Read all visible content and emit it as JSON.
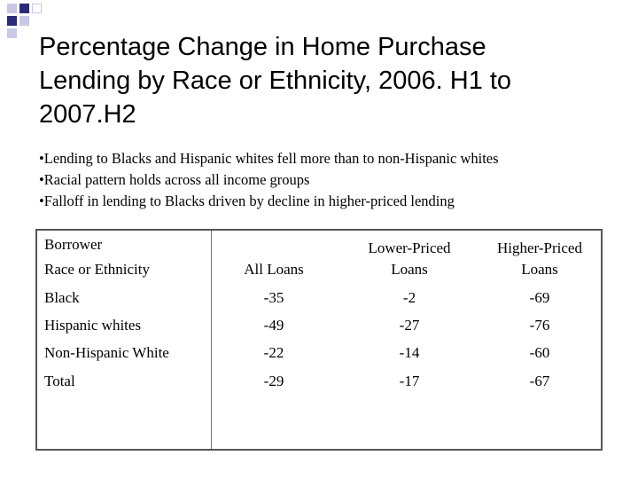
{
  "slide": {
    "title_lines": [
      "Percentage Change in Home Purchase",
      "Lending by Race or Ethnicity, 2006. H1 to",
      "2007.H2"
    ],
    "bullets": [
      "•Lending to Blacks and Hispanic whites fell more than to non-Hispanic whites",
      "•Racial pattern holds across all income groups",
      "•Falloff in lending to Blacks driven by decline in higher-priced lending"
    ]
  },
  "table": {
    "header": {
      "col1_line1": "Borrower",
      "col1_line2": "Race or Ethnicity",
      "col2": "All Loans",
      "col3_line1": "Lower-Priced",
      "col3_line2": "Loans",
      "col4_line1": "Higher-Priced",
      "col4_line2": "Loans"
    },
    "rows": [
      {
        "label": "Black",
        "all": "-35",
        "lower": "-2",
        "higher": "-69"
      },
      {
        "label": "Hispanic whites",
        "all": "-49",
        "lower": "-27",
        "higher": "-76"
      },
      {
        "label": "Non-Hispanic White",
        "all": "-22",
        "lower": "-14",
        "higher": "-60"
      },
      {
        "label": "Total",
        "all": "-29",
        "lower": "-17",
        "higher": "-67"
      }
    ]
  },
  "colors": {
    "deco_navy": "#2b2b7a",
    "deco_light": "#c8c8e6"
  }
}
